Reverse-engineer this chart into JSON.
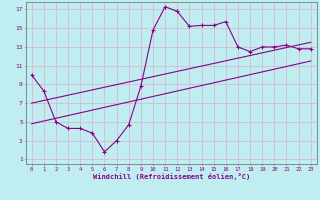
{
  "xlabel": "Windchill (Refroidissement éolien,°C)",
  "bg_color": "#c0eef0",
  "line_color": "#880088",
  "grid_color": "#d8b8d8",
  "axis_color": "#880088",
  "xlim": [
    -0.5,
    23.5
  ],
  "ylim": [
    0.5,
    17.8
  ],
  "xticks": [
    0,
    1,
    2,
    3,
    4,
    5,
    6,
    7,
    8,
    9,
    10,
    11,
    12,
    13,
    14,
    15,
    16,
    17,
    18,
    19,
    20,
    21,
    22,
    23
  ],
  "yticks": [
    1,
    3,
    5,
    7,
    9,
    11,
    13,
    15,
    17
  ],
  "data_x": [
    0,
    1,
    2,
    3,
    4,
    5,
    6,
    7,
    8,
    9,
    10,
    11,
    12,
    13,
    14,
    15,
    16,
    17,
    18,
    19,
    20,
    21,
    22,
    23
  ],
  "data_y": [
    10.0,
    8.3,
    5.0,
    4.3,
    4.3,
    3.8,
    1.8,
    3.0,
    4.7,
    8.8,
    14.8,
    17.3,
    16.8,
    15.2,
    15.3,
    15.3,
    15.7,
    13.0,
    12.5,
    13.0,
    13.0,
    13.2,
    12.8,
    12.8
  ],
  "line1_x": [
    0,
    23
  ],
  "line1_y": [
    7.0,
    13.5
  ],
  "line2_x": [
    0,
    23
  ],
  "line2_y": [
    4.8,
    11.5
  ]
}
